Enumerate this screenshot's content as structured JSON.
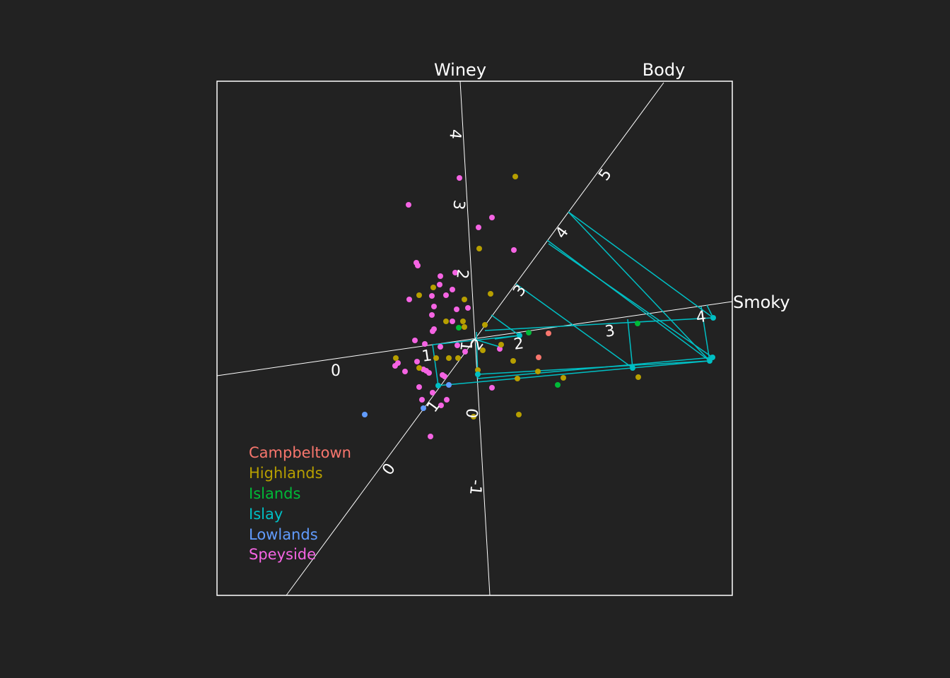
{
  "chart_data": {
    "type": "scatter",
    "subtype": "3d-parallel-coordinates-scatter",
    "axes": [
      {
        "name": "Winey",
        "ticks": [
          "-1",
          "0",
          "1",
          "2",
          "3",
          "4"
        ]
      },
      {
        "name": "Body",
        "ticks": [
          "0",
          "1",
          "2",
          "3",
          "4",
          "5"
        ]
      },
      {
        "name": "Smoky",
        "ticks": [
          "0",
          "1",
          "2",
          "3",
          "4"
        ]
      }
    ],
    "legend": {
      "placement": "bottom-left",
      "entries": [
        {
          "name": "Campbeltown",
          "color": "#f8766d"
        },
        {
          "name": "Highlands",
          "color": "#b79f00"
        },
        {
          "name": "Islands",
          "color": "#00ba38"
        },
        {
          "name": "Islay",
          "color": "#00bfc4"
        },
        {
          "name": "Lowlands",
          "color": "#619cff"
        },
        {
          "name": "Speyside",
          "color": "#f564e3"
        }
      ]
    },
    "highlighted_group": "Islay",
    "background": "#222222",
    "foreground": "#ffffff"
  }
}
